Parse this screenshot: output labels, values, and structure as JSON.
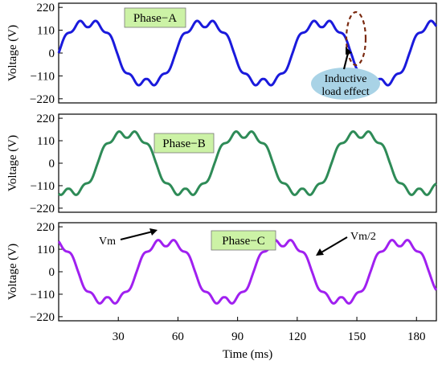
{
  "chart_data": [
    {
      "type": "line",
      "panel": "Phase-A",
      "title": "Phase−A",
      "ylabel": "Voltage (V)",
      "ylim": [
        -240,
        240
      ],
      "yticks": [
        220,
        110,
        0,
        -110,
        -220
      ],
      "ytick_labels": [
        "220",
        "110",
        "0",
        "−110",
        "−220"
      ],
      "xlim": [
        0,
        190
      ],
      "series": [
        {
          "color": "#1a1adc",
          "phase_deg": 0,
          "amplitude_peak": 180,
          "fundamental_hz": 17
        }
      ],
      "annotations": [
        {
          "text": "Inductive",
          "text2": "load effect",
          "x": 145,
          "y": -110
        }
      ]
    },
    {
      "type": "line",
      "panel": "Phase-B",
      "title": "Phase−B",
      "ylabel": "Voltage (V)",
      "ylim": [
        -240,
        240
      ],
      "yticks": [
        220,
        110,
        0,
        -110,
        -220
      ],
      "ytick_labels": [
        "220",
        "110",
        "0",
        "−110",
        "−220"
      ],
      "xlim": [
        0,
        190
      ],
      "series": [
        {
          "color": "#2e8b57",
          "phase_deg": -120,
          "amplitude_peak": 180,
          "fundamental_hz": 17
        }
      ]
    },
    {
      "type": "line",
      "panel": "Phase-C",
      "title": "Phase−C",
      "ylabel": "Voltage (V)",
      "xlabel": "Time (ms)",
      "ylim": [
        -240,
        240
      ],
      "yticks": [
        220,
        110,
        0,
        -110,
        -220
      ],
      "ytick_labels": [
        "220",
        "110",
        "0",
        "−110",
        "−220"
      ],
      "xlim": [
        0,
        190
      ],
      "xticks": [
        30,
        60,
        90,
        120,
        150,
        180
      ],
      "xtick_labels": [
        "30",
        "60",
        "90",
        "120",
        "150",
        "180"
      ],
      "series": [
        {
          "color": "#a020f0",
          "phase_deg": 120,
          "amplitude_peak": 180,
          "fundamental_hz": 17
        }
      ],
      "annotations": [
        {
          "text": "Vm",
          "x": 40,
          "y": 150
        },
        {
          "text": "Vm/2",
          "x": 135,
          "y": 150
        }
      ]
    }
  ],
  "colors": {
    "label_box_fill": "#ccf2a6",
    "annotation_ellipse_fill": "#a9d3e6",
    "dashed_ellipse_stroke": "#7a2a10"
  }
}
